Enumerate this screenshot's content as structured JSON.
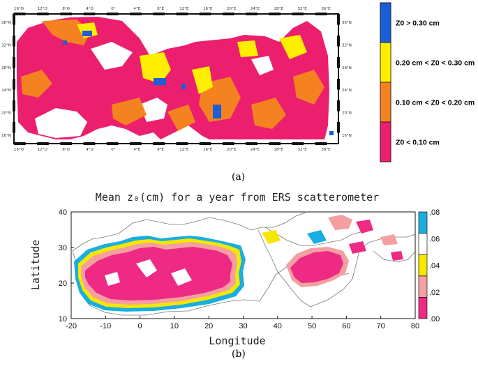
{
  "panel_a": {
    "label": "(a)",
    "lon_ticks_top": [
      "16°O",
      "12°O",
      "8°O",
      "4°O",
      "0°",
      "4°E",
      "8°E",
      "12°E",
      "16°E",
      "20°E",
      "24°E",
      "28°E",
      "32°E",
      "36°E"
    ],
    "lon_ticks_bottom": [
      "16°O",
      "12°O",
      "8°O",
      "4°O",
      "0°",
      "4°E",
      "8°E",
      "12°E",
      "16°E",
      "20°E",
      "24°E",
      "28°E",
      "32°E",
      "36°E"
    ],
    "lat_ticks": [
      "36°N",
      "32°N",
      "28°N",
      "24°N",
      "20°N",
      "16°N"
    ],
    "legend": [
      {
        "label": "Z0 > 0.30 cm",
        "color": "#1a5fd6"
      },
      {
        "label": "0.20 cm < Z0 < 0.30 cm",
        "color": "#ffee00"
      },
      {
        "label": "0.10 cm < Z0 < 0.20 cm",
        "color": "#f58220"
      },
      {
        "label": "Z0 < 0.10 cm",
        "color": "#ec1f6e"
      }
    ]
  },
  "panel_b": {
    "label": "(b)",
    "title": "Mean z₀(cm) for a year from ERS scatterometer",
    "xlabel": "Longitude",
    "ylabel": "Latitude",
    "x_ticks": [
      "-20",
      "-10",
      "0",
      "10",
      "20",
      "30",
      "40",
      "50",
      "60",
      "70",
      "80"
    ],
    "y_ticks": [
      "10",
      "20",
      "30",
      "40"
    ],
    "colorbar_ticks": [
      ".00",
      ".02",
      ".04",
      ".06",
      ".08"
    ],
    "colorbar_colors": [
      "#ee2a85",
      "#f4a0a0",
      "#f6e700",
      "#ffffff",
      "#19aee0"
    ]
  }
}
